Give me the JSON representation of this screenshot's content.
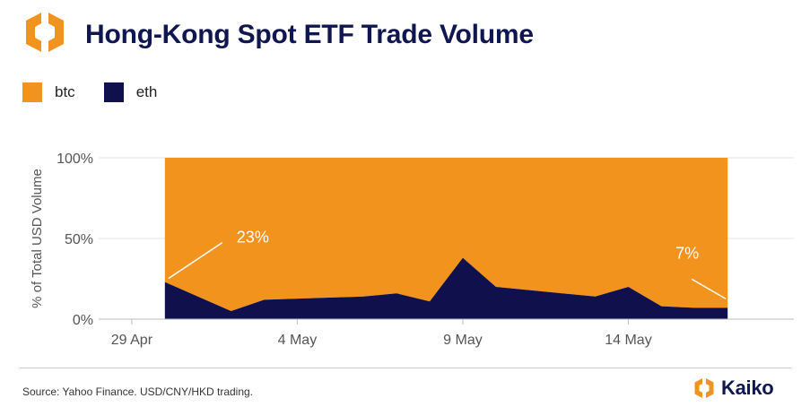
{
  "title": "Hong-Kong Spot ETF Trade Volume",
  "source": "Source: Yahoo Finance. USD/CNY/HKD trading.",
  "brand": {
    "name": "Kaiko"
  },
  "colors": {
    "btc": "#F2931E",
    "eth": "#10104D",
    "title": "#101650",
    "grid": "#e6e6e6"
  },
  "legend": [
    {
      "label": "btc",
      "color": "#F2931E"
    },
    {
      "label": "eth",
      "color": "#10104D"
    }
  ],
  "chart_data": {
    "type": "area",
    "stacked": true,
    "normalized": true,
    "x": [
      "2024-04-30",
      "2024-05-02",
      "2024-05-03",
      "2024-05-06",
      "2024-05-07",
      "2024-05-08",
      "2024-05-09",
      "2024-05-10",
      "2024-05-13",
      "2024-05-14",
      "2024-05-15",
      "2024-05-16",
      "2024-05-17"
    ],
    "xtick_labels": [
      "29 Apr",
      "4 May",
      "9 May",
      "14 May"
    ],
    "xtick_dates": [
      "2024-04-29",
      "2024-05-04",
      "2024-05-09",
      "2024-05-14"
    ],
    "xlim": [
      "2024-04-28",
      "2024-05-19"
    ],
    "series": [
      {
        "name": "eth",
        "values": [
          23,
          5,
          12,
          14,
          16,
          11,
          38,
          20,
          14,
          20,
          8,
          7,
          7
        ]
      },
      {
        "name": "btc",
        "values": [
          77,
          95,
          88,
          86,
          84,
          89,
          62,
          80,
          86,
          80,
          92,
          93,
          93
        ]
      }
    ],
    "ylabel": "% of Total USD Volume",
    "ytick_labels": [
      "0%",
      "50%",
      "100%"
    ],
    "yticks": [
      0,
      50,
      100
    ],
    "ylim": [
      0,
      100
    ],
    "grid": true,
    "legend_position": "top-left",
    "annotations": [
      {
        "text": "23%",
        "x": "2024-04-30"
      },
      {
        "text": "7%",
        "x": "2024-05-17"
      }
    ]
  }
}
